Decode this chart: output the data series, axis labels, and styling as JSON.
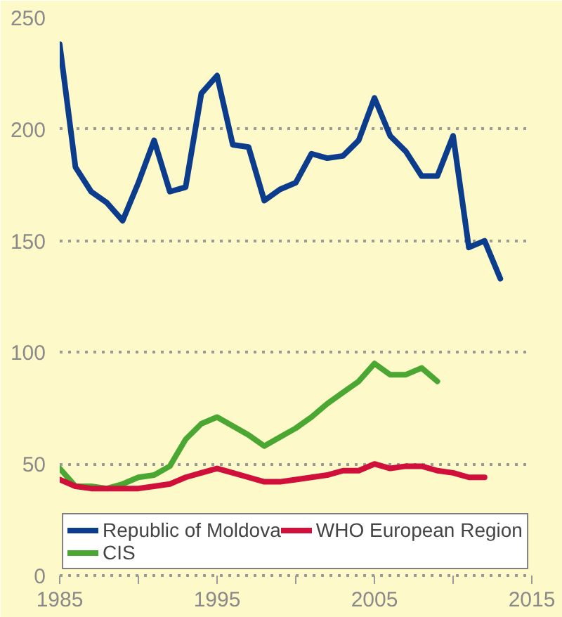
{
  "chart_data": {
    "type": "line",
    "x": [
      1985,
      1986,
      1987,
      1988,
      1989,
      1990,
      1991,
      1992,
      1993,
      1994,
      1995,
      1996,
      1997,
      1998,
      1999,
      2000,
      2001,
      2002,
      2003,
      2004,
      2005,
      2006,
      2007,
      2008,
      2009,
      2010,
      2011,
      2012,
      2013
    ],
    "series": [
      {
        "name": "Republic of Moldova",
        "color": "#0b3d8c",
        "values": [
          238,
          183,
          172,
          167,
          159,
          176,
          195,
          172,
          174,
          216,
          224,
          193,
          192,
          168,
          173,
          176,
          189,
          187,
          188,
          195,
          214,
          197,
          190,
          179,
          179,
          197,
          147,
          150,
          133
        ]
      },
      {
        "name": "CIS",
        "color": "#4aa832",
        "values": [
          48,
          40,
          40,
          39,
          41,
          44,
          45,
          49,
          61,
          68,
          71,
          67,
          63,
          58,
          62,
          66,
          71,
          77,
          82,
          87,
          95,
          90,
          90,
          93,
          87,
          null,
          null,
          null,
          null
        ]
      },
      {
        "name": "WHO European Region",
        "color": "#d0103a",
        "values": [
          43,
          40,
          39,
          39,
          39,
          39,
          40,
          41,
          44,
          46,
          48,
          46,
          44,
          42,
          42,
          43,
          44,
          45,
          47,
          47,
          50,
          48,
          49,
          49,
          47,
          46,
          44,
          44,
          null
        ]
      }
    ],
    "xlim": [
      1985,
      2015
    ],
    "ylim": [
      0,
      250
    ],
    "xticks": [
      1985,
      {
        "value": 1990,
        "label": null
      },
      1995,
      {
        "value": 2000,
        "label": null
      },
      2005,
      {
        "value": 2010,
        "label": null
      },
      2015
    ],
    "yticks": [
      0,
      50,
      100,
      150,
      200,
      250
    ],
    "grid": "y",
    "legend": "bottom",
    "line_style": "solid",
    "marker": "none"
  }
}
